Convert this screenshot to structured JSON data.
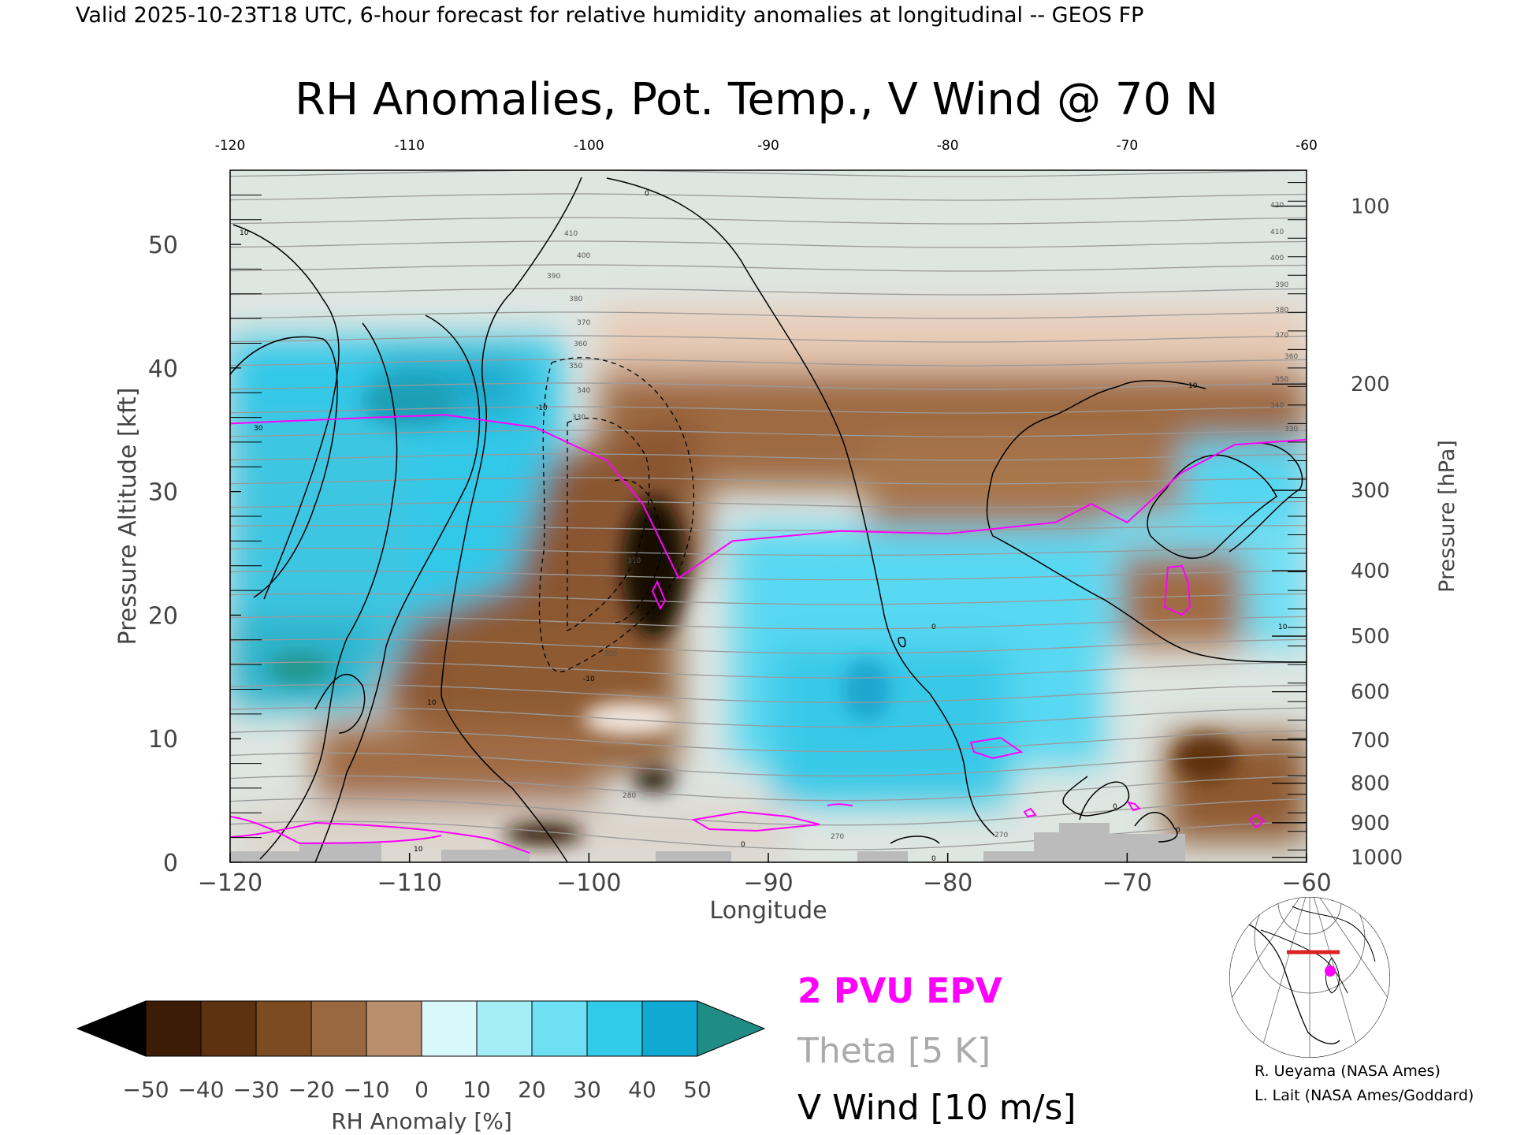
{
  "header": {
    "valid_line": "Valid 2025-10-23T18 UTC, 6-hour forecast for relative humidity anomalies at longitudinal -- GEOS FP"
  },
  "chart_data": {
    "type": "heatmap",
    "title": "RH Anomalies, Pot. Temp., V Wind @ 70 N",
    "xlabel": "Longitude",
    "ylabel": "Pressure Altitude [kft]",
    "y2label": "Pressure [hPa]",
    "xlim": [
      -120,
      -60
    ],
    "ylim": [
      0,
      56
    ],
    "x_ticks": [
      -120,
      -110,
      -100,
      -90,
      -80,
      -70,
      -60
    ],
    "x_tick_labels": [
      "−120",
      "−110",
      "−100",
      "−90",
      "−80",
      "−70",
      "−60"
    ],
    "top_tick_labels": [
      "-120",
      "-110",
      "-100",
      "-90",
      "-80",
      "-70",
      "-60"
    ],
    "y_ticks": [
      0,
      10,
      20,
      30,
      40,
      50
    ],
    "y_tick_labels": [
      "0",
      "10",
      "20",
      "30",
      "40",
      "50"
    ],
    "pressure_ticks": [
      {
        "hpa": 100,
        "kft": 53.1,
        "label": "100"
      },
      {
        "hpa": 200,
        "kft": 38.7,
        "label": "200"
      },
      {
        "hpa": 300,
        "kft": 30.1,
        "label": "300"
      },
      {
        "hpa": 400,
        "kft": 23.6,
        "label": "400"
      },
      {
        "hpa": 500,
        "kft": 18.3,
        "label": "500"
      },
      {
        "hpa": 600,
        "kft": 13.8,
        "label": "600"
      },
      {
        "hpa": 700,
        "kft": 9.9,
        "label": "700"
      },
      {
        "hpa": 800,
        "kft": 6.4,
        "label": "800"
      },
      {
        "hpa": 900,
        "kft": 3.2,
        "label": "900"
      },
      {
        "hpa": 1000,
        "kft": 0.4,
        "label": "1000"
      }
    ],
    "rh_anomaly_regions": [
      {
        "desc": "moist west column",
        "lon": -116,
        "kft": 27,
        "value": 40
      },
      {
        "desc": "moist upper west",
        "lon": -109,
        "kft": 37,
        "value": 45
      },
      {
        "desc": "dry plume core",
        "lon": -96,
        "kft": 24,
        "value": -50
      },
      {
        "desc": "dry upper band",
        "lon": -82,
        "kft": 36,
        "value": -35
      },
      {
        "desc": "moist mid-level east",
        "lon": -82,
        "kft": 14,
        "value": 25
      },
      {
        "desc": "dry low-level west",
        "lon": -104,
        "kft": 8,
        "value": -40
      },
      {
        "desc": "dry low-level east",
        "lon": -66,
        "kft": 10,
        "value": -35
      },
      {
        "desc": "moist east upper",
        "lon": -63,
        "kft": 30,
        "value": 35
      }
    ],
    "theta_contour_labels": [
      "270",
      "280",
      "300",
      "310",
      "330",
      "340",
      "350",
      "360",
      "370",
      "380",
      "390",
      "400",
      "410",
      "420"
    ],
    "vwind_contour_labels": [
      "10",
      "0",
      "-10",
      "10",
      "0",
      "10",
      "0",
      "10",
      "0",
      "0",
      "0",
      "-10",
      "10",
      "30"
    ],
    "epv_2pvu_line": [
      {
        "lon": -120,
        "kft": 35.5
      },
      {
        "lon": -112,
        "kft": 36
      },
      {
        "lon": -108,
        "kft": 36.2
      },
      {
        "lon": -103,
        "kft": 35.2
      },
      {
        "lon": -99,
        "kft": 32.5
      },
      {
        "lon": -97,
        "kft": 29
      },
      {
        "lon": -96,
        "kft": 26
      },
      {
        "lon": -95,
        "kft": 23
      },
      {
        "lon": -92,
        "kft": 26
      },
      {
        "lon": -86,
        "kft": 26.8
      },
      {
        "lon": -80,
        "kft": 26.6
      },
      {
        "lon": -74,
        "kft": 27.5
      },
      {
        "lon": -72,
        "kft": 29
      },
      {
        "lon": -70,
        "kft": 27.5
      },
      {
        "lon": -67,
        "kft": 31.5
      },
      {
        "lon": -64,
        "kft": 33.8
      },
      {
        "lon": -60,
        "kft": 34.2
      }
    ],
    "colorbar": {
      "label": "RH Anomaly [%]",
      "tick_labels": [
        "−50",
        "−40",
        "−30",
        "−20",
        "−10",
        "0",
        "10",
        "20",
        "30",
        "40",
        "50"
      ],
      "colors": [
        "#3d1c07",
        "#5e3210",
        "#7d4b22",
        "#9a6840",
        "#bb8f6e",
        "#e2cbbb",
        "#d8f8fc",
        "#a5eef8",
        "#6ee0f4",
        "#33cbea",
        "#0fa9d2",
        "#0b82a6"
      ],
      "under_color": "#000000",
      "over_color": "#1f8c86"
    },
    "legend": [
      {
        "label": "2 PVU EPV",
        "color": "#ff00ff"
      },
      {
        "label": "Theta [5 K]",
        "color": "#aaaaaa"
      },
      {
        "label": "V Wind [10 m/s]",
        "color": "#000000"
      }
    ]
  },
  "credits": [
    "R. Ueyama (NASA Ames)",
    "L. Lait (NASA Ames/Goddard)"
  ],
  "colors": {
    "epv": "#ff00ff",
    "theta": "#999999",
    "vwind": "#000000",
    "terrain": "#bbbbbb"
  },
  "inset_map": {
    "icon": "polar-locator-map-icon"
  }
}
